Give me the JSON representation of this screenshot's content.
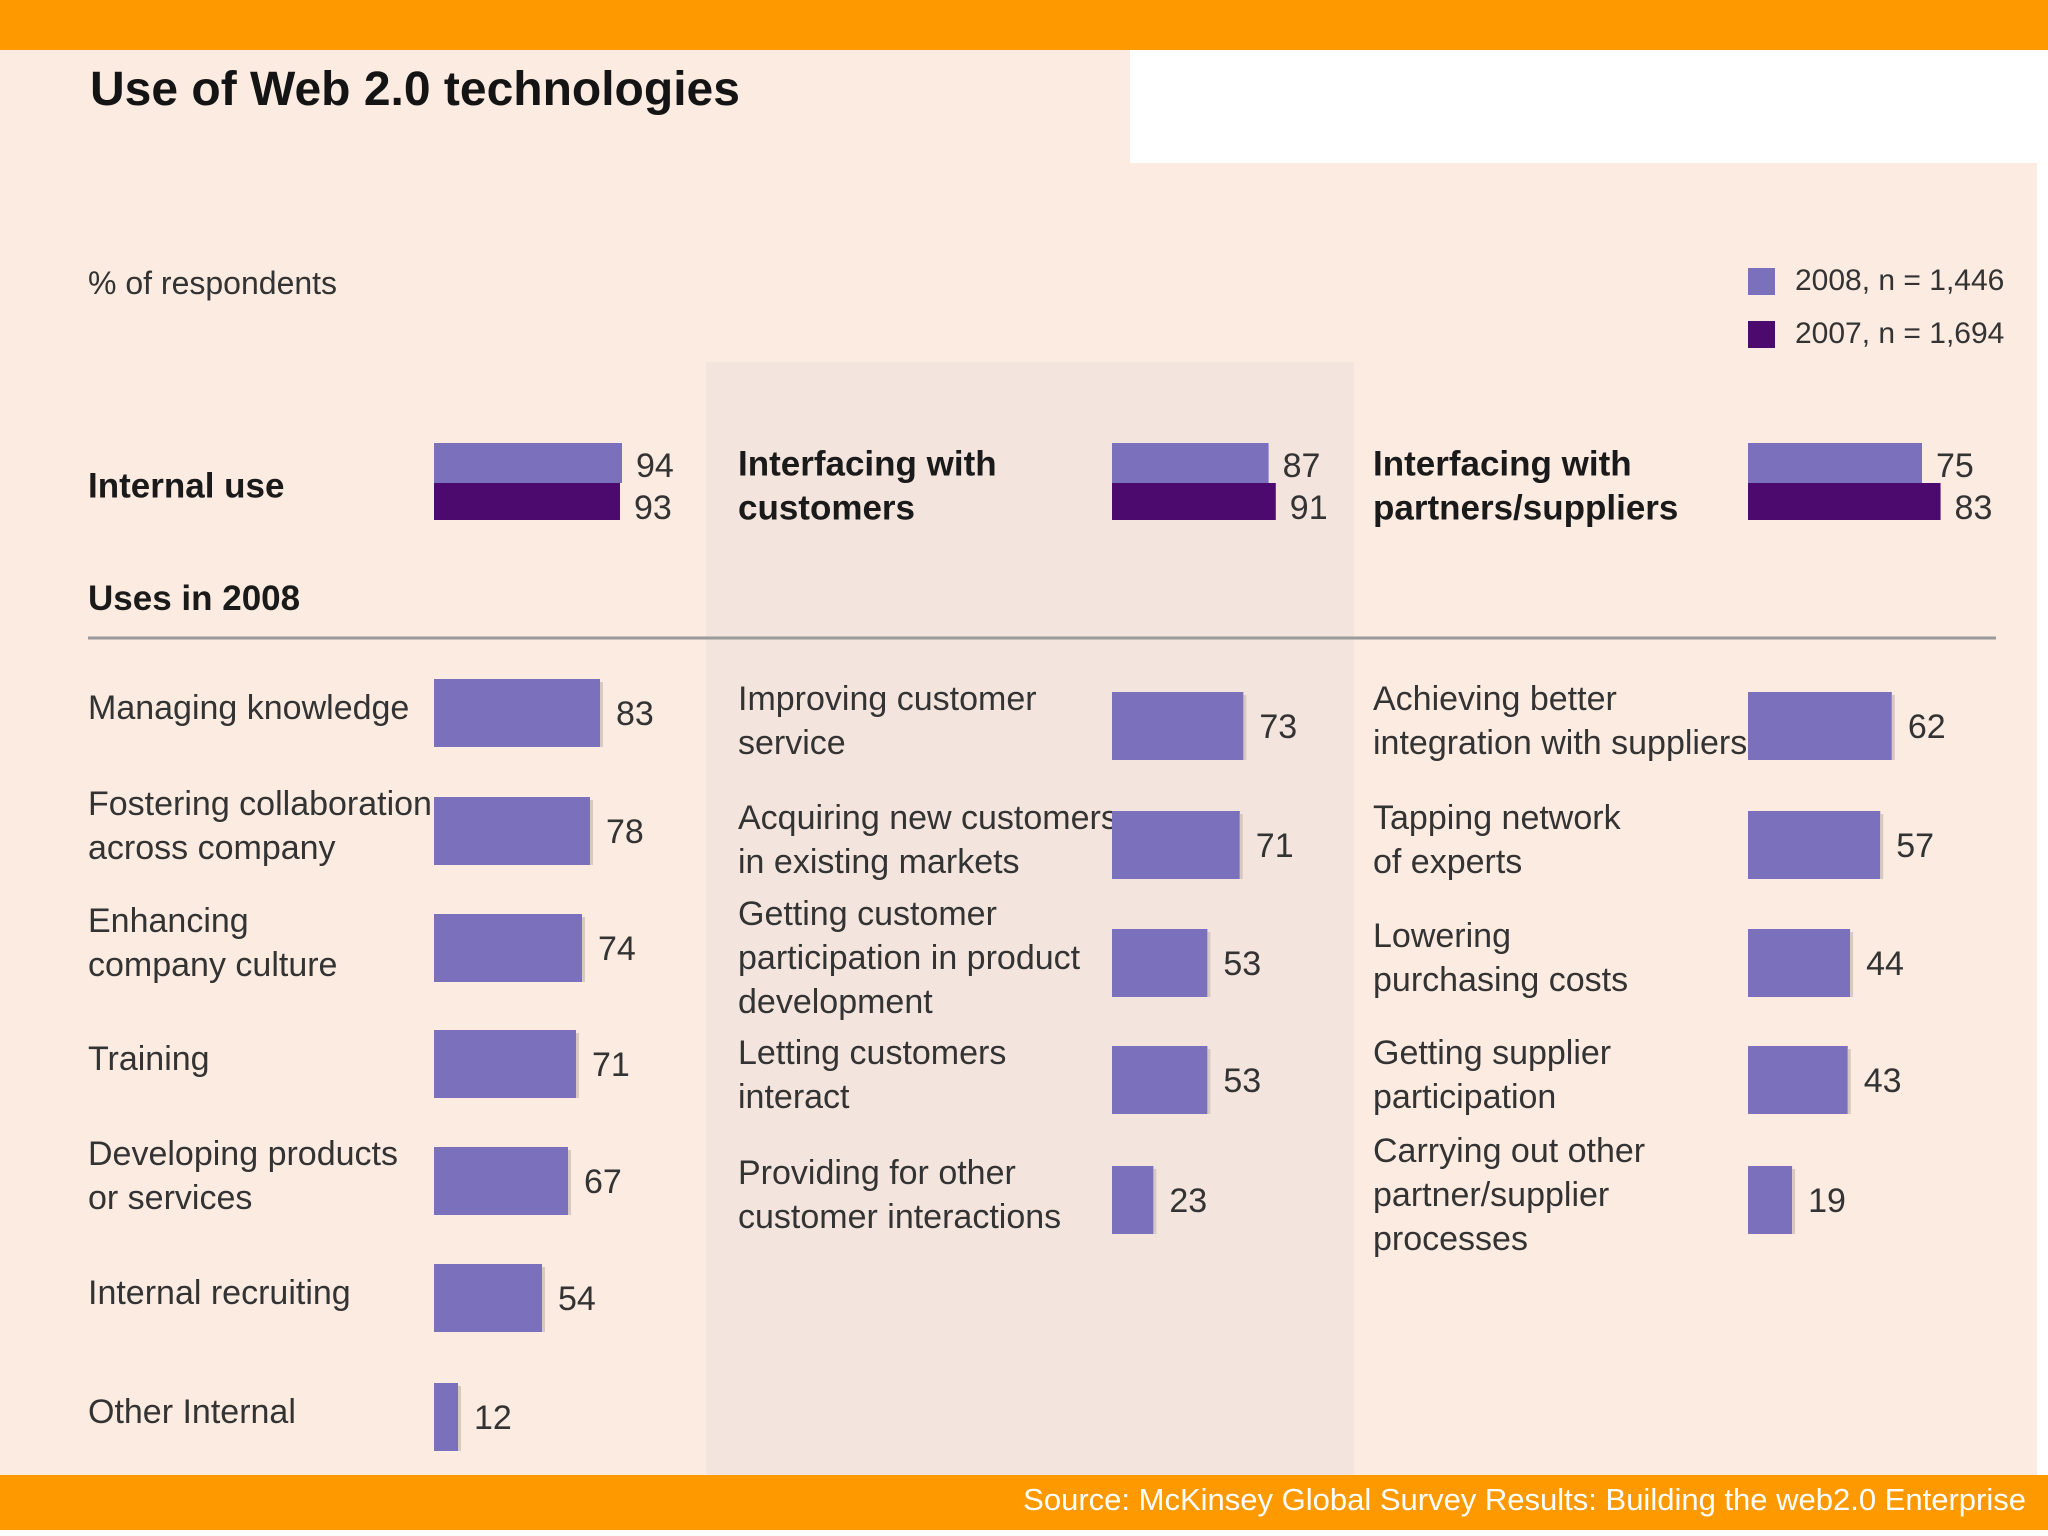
{
  "title": "Use of Web 2.0 technologies",
  "subtitle": "% of respondents",
  "source": "Source: McKinsey Global Survey Results: Building the web2.0 Enterprise",
  "colors": {
    "accent": "#ff9900",
    "series_2008": "#7b70bc",
    "series_2007": "#4d0a6e",
    "background": "#fbebe1"
  },
  "legend": [
    {
      "label": "2008, n = 1,446",
      "color": "#7b70bc"
    },
    {
      "label": "2007, n = 1,694",
      "color": "#4d0a6e"
    }
  ],
  "chart_data": {
    "type": "bar",
    "orientation": "horizontal",
    "title": "Use of Web 2.0 technologies",
    "subtitle": "% of respondents",
    "subsection_label": "Uses in 2008",
    "legend_position": "top-right",
    "grid": false,
    "xlim": [
      0,
      100
    ],
    "series_names": [
      "2008, n = 1,446",
      "2007, n = 1,694"
    ],
    "panels": [
      {
        "heading": [
          "Internal use"
        ],
        "summary": {
          "2008": 94,
          "2007": 93
        },
        "categories": [
          [
            "Managing knowledge"
          ],
          [
            "Fostering collaboration",
            "across company"
          ],
          [
            "Enhancing",
            "company culture"
          ],
          [
            "Training"
          ],
          [
            "Developing products",
            "or services"
          ],
          [
            "Internal recruiting"
          ],
          [
            "Other Internal"
          ]
        ],
        "values": [
          83,
          78,
          74,
          71,
          67,
          54,
          12
        ]
      },
      {
        "heading": [
          "Interfacing with",
          "customers"
        ],
        "summary": {
          "2008": 87,
          "2007": 91
        },
        "categories": [
          [
            "Improving customer",
            "service"
          ],
          [
            "Acquiring new customers",
            "in existing markets"
          ],
          [
            "Getting customer",
            "participation in product",
            "development"
          ],
          [
            "Letting customers",
            "interact"
          ],
          [
            "Providing for other",
            "customer interactions"
          ]
        ],
        "values": [
          73,
          71,
          53,
          53,
          23
        ]
      },
      {
        "heading": [
          "Interfacing with",
          "partners/suppliers"
        ],
        "summary": {
          "2008": 75,
          "2007": 83
        },
        "categories": [
          [
            "Achieving better",
            "integration with suppliers"
          ],
          [
            "Tapping network",
            "of experts"
          ],
          [
            "Lowering",
            "purchasing costs"
          ],
          [
            "Getting supplier",
            "participation"
          ],
          [
            "Carrying out other",
            "partner/supplier",
            "processes"
          ]
        ],
        "values": [
          62,
          57,
          44,
          43,
          19
        ]
      }
    ]
  }
}
